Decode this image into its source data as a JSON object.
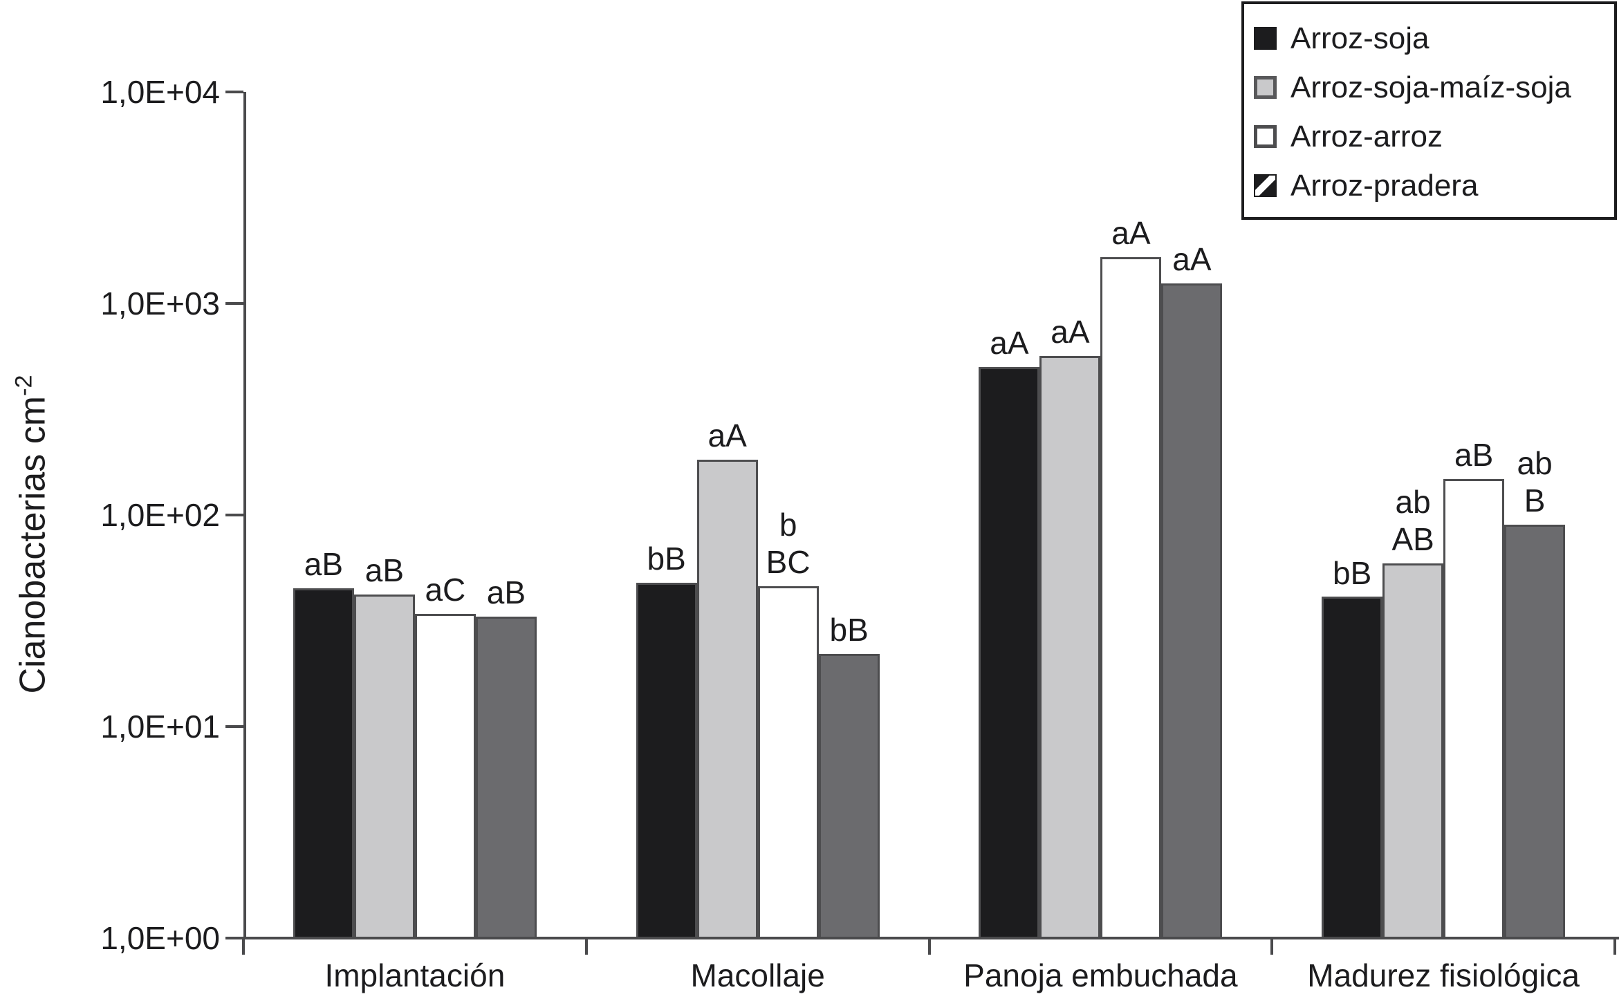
{
  "chart_data": {
    "type": "bar",
    "title": "",
    "ylabel": "Cianobacterias cm^-2",
    "ylabel_main": "Cianobacterias cm",
    "ylabel_sup": "-2",
    "yaxis": {
      "scale": "log",
      "ylim": [
        1,
        10000
      ],
      "tick_labels": [
        "1,0E+00",
        "1,0E+01",
        "1,0E+02",
        "1,0E+03",
        "1,0E+04"
      ],
      "tick_values": [
        1,
        10,
        100,
        1000,
        10000
      ]
    },
    "categories": [
      "Implantación",
      "Macollaje",
      "Panoja embuchada",
      "Madurez fisiológica"
    ],
    "series": [
      {
        "name": "Arroz-soja",
        "swatch": "solid-black",
        "fill": "#1c1c1e",
        "values": [
          45,
          48,
          500,
          41
        ],
        "bar_labels": [
          "aB",
          "bB",
          "aA",
          "bB"
        ]
      },
      {
        "name": "Arroz-soja-maíz-soja",
        "swatch": "gray-bordered",
        "fill": "#c9c9cb",
        "values": [
          42,
          182,
          565,
          59
        ],
        "bar_labels": [
          "aB",
          "aA",
          "aA",
          "ab\nAB"
        ]
      },
      {
        "name": "Arroz-arroz",
        "swatch": "white-bordered",
        "fill": "#ffffff",
        "values": [
          34,
          46,
          1660,
          148
        ],
        "bar_labels": [
          "aC",
          "b\nBC",
          "aA",
          "aB"
        ]
      },
      {
        "name": "Arroz-pradera",
        "swatch": "black-diagonal",
        "fill": "#6b6b6e",
        "values": [
          33,
          22,
          1240,
          90
        ],
        "bar_labels": [
          "aB",
          "bB",
          "aA",
          "ab\nB"
        ]
      }
    ],
    "legend_position": "top-right",
    "grid": false,
    "colors": {
      "axis": "#4a4a4c",
      "text": "#1c1c1e",
      "bar_border": "#4d4d4f"
    }
  }
}
